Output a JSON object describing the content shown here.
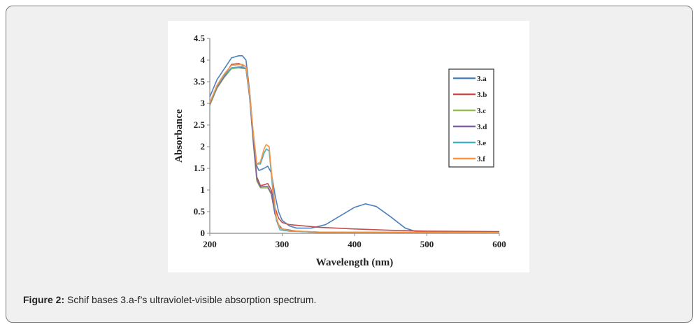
{
  "caption": {
    "label": "Figure 2:",
    "text": " Schif bases 3.a-f’s ultraviolet-visible absorption spectrum."
  },
  "chart_data": {
    "type": "line",
    "title": "",
    "xlabel": "Wavelength (nm)",
    "ylabel": "Absorbance",
    "xlim": [
      200,
      600
    ],
    "ylim": [
      0,
      4.5
    ],
    "xticks": [
      200,
      300,
      400,
      500,
      600
    ],
    "yticks": [
      "0",
      "0.5",
      "1",
      "1.5",
      "2",
      "2.5",
      "3",
      "3.5",
      "4",
      "4.5"
    ],
    "grid": false,
    "legend_position": "right",
    "series": [
      {
        "name": "3.a",
        "color": "#4f81bd",
        "points": [
          [
            200,
            3.15
          ],
          [
            210,
            3.55
          ],
          [
            220,
            3.8
          ],
          [
            230,
            4.05
          ],
          [
            240,
            4.1
          ],
          [
            245,
            4.1
          ],
          [
            250,
            4.0
          ],
          [
            255,
            3.3
          ],
          [
            260,
            2.3
          ],
          [
            265,
            1.55
          ],
          [
            268,
            1.45
          ],
          [
            275,
            1.5
          ],
          [
            280,
            1.55
          ],
          [
            285,
            1.4
          ],
          [
            290,
            0.9
          ],
          [
            295,
            0.5
          ],
          [
            300,
            0.3
          ],
          [
            310,
            0.17
          ],
          [
            320,
            0.12
          ],
          [
            340,
            0.12
          ],
          [
            360,
            0.2
          ],
          [
            380,
            0.4
          ],
          [
            400,
            0.6
          ],
          [
            415,
            0.68
          ],
          [
            430,
            0.62
          ],
          [
            450,
            0.38
          ],
          [
            470,
            0.12
          ],
          [
            485,
            0.04
          ],
          [
            500,
            0.03
          ],
          [
            600,
            0.02
          ]
        ]
      },
      {
        "name": "3.b",
        "color": "#c0504d",
        "points": [
          [
            200,
            3.0
          ],
          [
            210,
            3.4
          ],
          [
            220,
            3.65
          ],
          [
            230,
            3.9
          ],
          [
            240,
            3.92
          ],
          [
            250,
            3.85
          ],
          [
            255,
            3.2
          ],
          [
            260,
            2.2
          ],
          [
            265,
            1.3
          ],
          [
            270,
            1.1
          ],
          [
            275,
            1.12
          ],
          [
            280,
            1.15
          ],
          [
            285,
            1.0
          ],
          [
            290,
            0.6
          ],
          [
            295,
            0.35
          ],
          [
            300,
            0.25
          ],
          [
            310,
            0.2
          ],
          [
            350,
            0.14
          ],
          [
            400,
            0.1
          ],
          [
            450,
            0.07
          ],
          [
            500,
            0.05
          ],
          [
            600,
            0.04
          ]
        ]
      },
      {
        "name": "3.c",
        "color": "#9bbb59",
        "points": [
          [
            200,
            2.95
          ],
          [
            210,
            3.35
          ],
          [
            220,
            3.6
          ],
          [
            230,
            3.8
          ],
          [
            240,
            3.82
          ],
          [
            250,
            3.8
          ],
          [
            255,
            3.15
          ],
          [
            260,
            2.1
          ],
          [
            265,
            1.2
          ],
          [
            270,
            1.05
          ],
          [
            275,
            1.05
          ],
          [
            280,
            1.05
          ],
          [
            285,
            0.9
          ],
          [
            290,
            0.45
          ],
          [
            295,
            0.2
          ],
          [
            300,
            0.1
          ],
          [
            320,
            0.05
          ],
          [
            350,
            0.02
          ],
          [
            600,
            0.01
          ]
        ]
      },
      {
        "name": "3.d",
        "color": "#8064a2",
        "points": [
          [
            200,
            2.98
          ],
          [
            210,
            3.37
          ],
          [
            220,
            3.62
          ],
          [
            230,
            3.82
          ],
          [
            240,
            3.84
          ],
          [
            250,
            3.8
          ],
          [
            255,
            3.15
          ],
          [
            260,
            2.15
          ],
          [
            265,
            1.25
          ],
          [
            270,
            1.07
          ],
          [
            275,
            1.08
          ],
          [
            280,
            1.08
          ],
          [
            285,
            0.92
          ],
          [
            290,
            0.45
          ],
          [
            295,
            0.2
          ],
          [
            300,
            0.1
          ],
          [
            320,
            0.05
          ],
          [
            350,
            0.02
          ],
          [
            600,
            0.01
          ]
        ]
      },
      {
        "name": "3.e",
        "color": "#4bacc6",
        "points": [
          [
            200,
            3.0
          ],
          [
            210,
            3.4
          ],
          [
            220,
            3.65
          ],
          [
            230,
            3.82
          ],
          [
            245,
            3.85
          ],
          [
            250,
            3.8
          ],
          [
            255,
            3.2
          ],
          [
            260,
            2.3
          ],
          [
            265,
            1.6
          ],
          [
            270,
            1.6
          ],
          [
            275,
            1.85
          ],
          [
            278,
            1.95
          ],
          [
            282,
            1.9
          ],
          [
            287,
            1.0
          ],
          [
            292,
            0.3
          ],
          [
            297,
            0.08
          ],
          [
            310,
            0.05
          ],
          [
            350,
            0.03
          ],
          [
            600,
            0.01
          ]
        ]
      },
      {
        "name": "3.f",
        "color": "#f79646",
        "points": [
          [
            200,
            3.02
          ],
          [
            210,
            3.42
          ],
          [
            220,
            3.68
          ],
          [
            230,
            3.88
          ],
          [
            245,
            3.9
          ],
          [
            250,
            3.85
          ],
          [
            255,
            3.25
          ],
          [
            260,
            2.35
          ],
          [
            265,
            1.6
          ],
          [
            270,
            1.65
          ],
          [
            275,
            1.95
          ],
          [
            278,
            2.05
          ],
          [
            282,
            2.0
          ],
          [
            287,
            1.1
          ],
          [
            292,
            0.35
          ],
          [
            297,
            0.12
          ],
          [
            310,
            0.06
          ],
          [
            350,
            0.03
          ],
          [
            600,
            0.02
          ]
        ]
      }
    ]
  }
}
